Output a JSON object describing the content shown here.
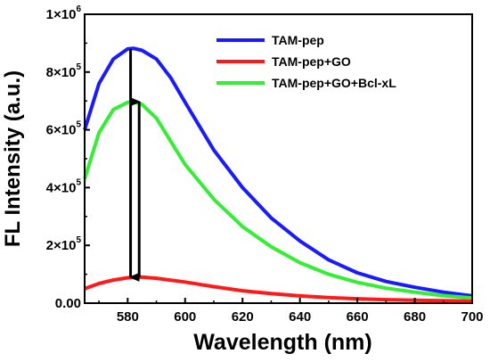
{
  "chart_data": {
    "type": "line",
    "xlabel": "Wavelength (nm)",
    "ylabel": "FL Intensity (a.u.)",
    "xlim": [
      565,
      700
    ],
    "ylim": [
      0,
      1000000
    ],
    "x_ticks": [
      {
        "value": 580,
        "label": "580"
      },
      {
        "value": 600,
        "label": "600"
      },
      {
        "value": 620,
        "label": "620"
      },
      {
        "value": 640,
        "label": "640"
      },
      {
        "value": 660,
        "label": "660"
      },
      {
        "value": 680,
        "label": "680"
      },
      {
        "value": 700,
        "label": "700"
      }
    ],
    "y_ticks": [
      {
        "value": 0,
        "mant": "0.00",
        "exp": ""
      },
      {
        "value": 200000,
        "mant": "2×10",
        "exp": "5"
      },
      {
        "value": 400000,
        "mant": "4×10",
        "exp": "5"
      },
      {
        "value": 600000,
        "mant": "6×10",
        "exp": "5"
      },
      {
        "value": 800000,
        "mant": "8×10",
        "exp": "5"
      },
      {
        "value": 1000000,
        "mant": "1×10",
        "exp": "6"
      }
    ],
    "legend_position": "top-right",
    "series": [
      {
        "name": "TAM-pep",
        "color": "#1a1aff",
        "x": [
          565,
          570,
          575,
          580,
          582,
          585,
          590,
          595,
          600,
          610,
          620,
          630,
          640,
          650,
          660,
          670,
          680,
          690,
          700
        ],
        "y": [
          600000,
          760000,
          845000,
          880000,
          882000,
          875000,
          845000,
          780000,
          695000,
          530000,
          400000,
          295000,
          215000,
          150000,
          105000,
          75000,
          55000,
          38000,
          25000
        ]
      },
      {
        "name": "TAM-pep+GO",
        "color": "#ff1a1a",
        "x": [
          565,
          570,
          575,
          580,
          585,
          590,
          600,
          610,
          620,
          630,
          640,
          650,
          660,
          670,
          680,
          690,
          700
        ],
        "y": [
          50000,
          68000,
          80000,
          88000,
          90000,
          86000,
          73000,
          57000,
          43000,
          33000,
          25000,
          19000,
          15000,
          12000,
          10000,
          8500,
          7000
        ]
      },
      {
        "name": "TAM-pep+GO+Bcl-xL",
        "color": "#33ee33",
        "x": [
          565,
          570,
          575,
          580,
          582,
          585,
          590,
          595,
          600,
          610,
          620,
          630,
          640,
          650,
          660,
          670,
          680,
          690,
          700
        ],
        "y": [
          430000,
          590000,
          670000,
          695000,
          697000,
          688000,
          640000,
          560000,
          480000,
          360000,
          265000,
          195000,
          140000,
          100000,
          72000,
          52000,
          38000,
          26000,
          18000
        ]
      }
    ],
    "arrows": [
      {
        "x": 581,
        "from": 880000,
        "to": 90000,
        "direction": "down"
      },
      {
        "x": 584,
        "from": 90000,
        "to": 697000,
        "direction": "up"
      }
    ]
  }
}
